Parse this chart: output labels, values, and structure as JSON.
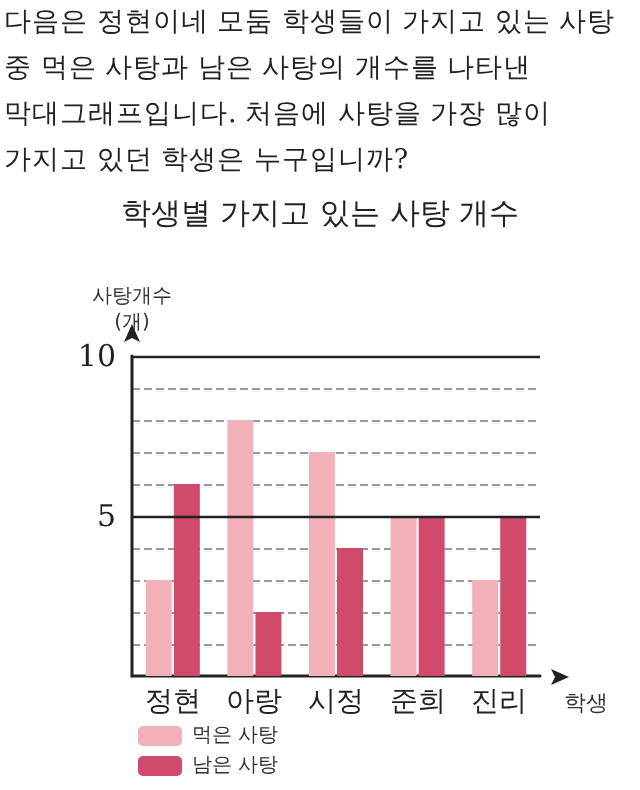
{
  "chart_data": {
    "type": "bar",
    "title": "학생별 가지고 있는 사탕 개수",
    "annotations": [
      "다음은 정현이네 모둠 학생들이 가지고 있는 사탕 중 먹은 사탕과 남은 사탕의 개수를 나타낸 막대그래프입니다. 처음에 사탕을 가장 많이 가지고 있던 학생은 누구입니까?"
    ],
    "xlabel": "학생",
    "ylabel": "사탕개수\n(개)",
    "categories": [
      "정현",
      "아랑",
      "시정",
      "준희",
      "진리"
    ],
    "series": [
      {
        "name": "먹은 사탕",
        "color": "#f2b0b8",
        "values": [
          3,
          8,
          7,
          5,
          3
        ]
      },
      {
        "name": "남은 사탕",
        "color": "#d04a6c",
        "values": [
          6,
          2,
          4,
          5,
          5
        ]
      }
    ],
    "ylim": [
      0,
      10
    ],
    "yticks": [
      {
        "value": 1,
        "label": null
      },
      {
        "value": 2,
        "label": null
      },
      {
        "value": 3,
        "label": null
      },
      {
        "value": 4,
        "label": null
      },
      5,
      {
        "value": 6,
        "label": null
      },
      {
        "value": 7,
        "label": null
      },
      {
        "value": 8,
        "label": null
      },
      {
        "value": 9,
        "label": null
      },
      10
    ],
    "ref_lines": [
      {
        "axis": "y",
        "value": 5,
        "color": "#222222",
        "line_style": "solid"
      },
      {
        "axis": "y",
        "value": 10,
        "color": "#222222",
        "line_style": "solid"
      }
    ],
    "grid": "y",
    "legend": "bottom left"
  }
}
